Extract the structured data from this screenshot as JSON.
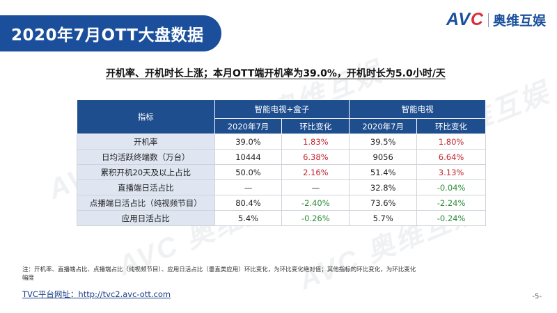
{
  "slide_title": "2020年7月OTT大盘数据",
  "logo": {
    "latin_main": "AV",
    "latin_accent": "C",
    "chinese": "奥维互娱"
  },
  "headline": "开机率、开机时长上涨；本月OTT端开机率为39.0%，开机时长为5.0小时/天",
  "watermark_text": "AVC 奥维互娱",
  "table": {
    "header_indicator": "指标",
    "group1": "智能电视+盒子",
    "group2": "智能电视",
    "sub_month": "2020年7月",
    "sub_change": "环比变化",
    "rows": [
      {
        "label": "开机率",
        "v1": "39.0%",
        "c1": "1.83%",
        "c1_color": "#c0262f",
        "v2": "39.5%",
        "c2": "1.80%",
        "c2_color": "#c0262f"
      },
      {
        "label": "日均活跃终端数（万台）",
        "v1": "10444",
        "c1": "6.38%",
        "c1_color": "#c0262f",
        "v2": "9056",
        "c2": "6.64%",
        "c2_color": "#c0262f"
      },
      {
        "label": "累积开机20天及以上占比",
        "v1": "50.0%",
        "c1": "2.16%",
        "c1_color": "#c0262f",
        "v2": "51.4%",
        "c2": "3.13%",
        "c2_color": "#c0262f"
      },
      {
        "label": "直播端日活占比",
        "v1": "—",
        "c1": "—",
        "c1_color": "#222222",
        "v2": "32.8%",
        "c2": "-0.04%",
        "c2_color": "#2a8c3a"
      },
      {
        "label": "点播端日活占比（纯视频节目）",
        "v1": "80.4%",
        "c1": "-2.40%",
        "c1_color": "#2a8c3a",
        "v2": "73.6%",
        "c2": "-2.24%",
        "c2_color": "#2a8c3a"
      },
      {
        "label": "应用日活占比",
        "v1": "5.4%",
        "c1": "-0.26%",
        "c1_color": "#2a8c3a",
        "v2": "5.7%",
        "c2": "-0.24%",
        "c2_color": "#2a8c3a"
      }
    ]
  },
  "note": "注：开机率、直播端占比、点播端占比（纯视频节目）、应用日活占比（垂直类应用）环比变化，为环比变化绝对值；其他指标的环比变化，为环比变化幅度",
  "url": "TVC平台网址：http://tvc2.avc-ott.com",
  "page_number": "-5-"
}
